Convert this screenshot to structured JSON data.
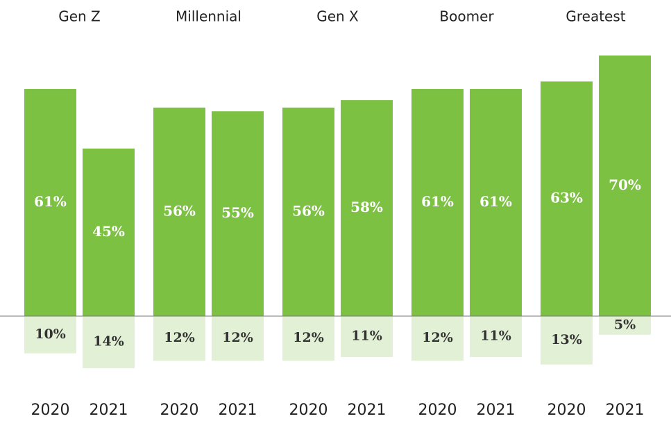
{
  "chart_data": {
    "type": "diverging-bar",
    "categories": [
      "Gen Z",
      "Millennial",
      "Gen X",
      "Boomer",
      "Greatest"
    ],
    "series": [
      {
        "name": "2020",
        "color": "#7dc142",
        "below_color": "#e2f0d5",
        "values": [
          61,
          56,
          56,
          61,
          63
        ],
        "value_labels": [
          "61%",
          "56%",
          "56%",
          "61%",
          "63%"
        ],
        "below": [
          10,
          12,
          12,
          12,
          13
        ],
        "below_labels": [
          "10%",
          "12%",
          "12%",
          "12%",
          "13%"
        ]
      },
      {
        "name": "2021",
        "color": "#7dc142",
        "below_color": "#e2f0d5",
        "values": [
          45,
          55,
          58,
          61,
          70
        ],
        "value_labels": [
          "45%",
          "55%",
          "58%",
          "61%",
          "70%"
        ],
        "below": [
          14,
          12,
          11,
          11,
          5
        ],
        "below_labels": [
          "14%",
          "12%",
          "11%",
          "11%",
          "5%"
        ]
      }
    ]
  }
}
